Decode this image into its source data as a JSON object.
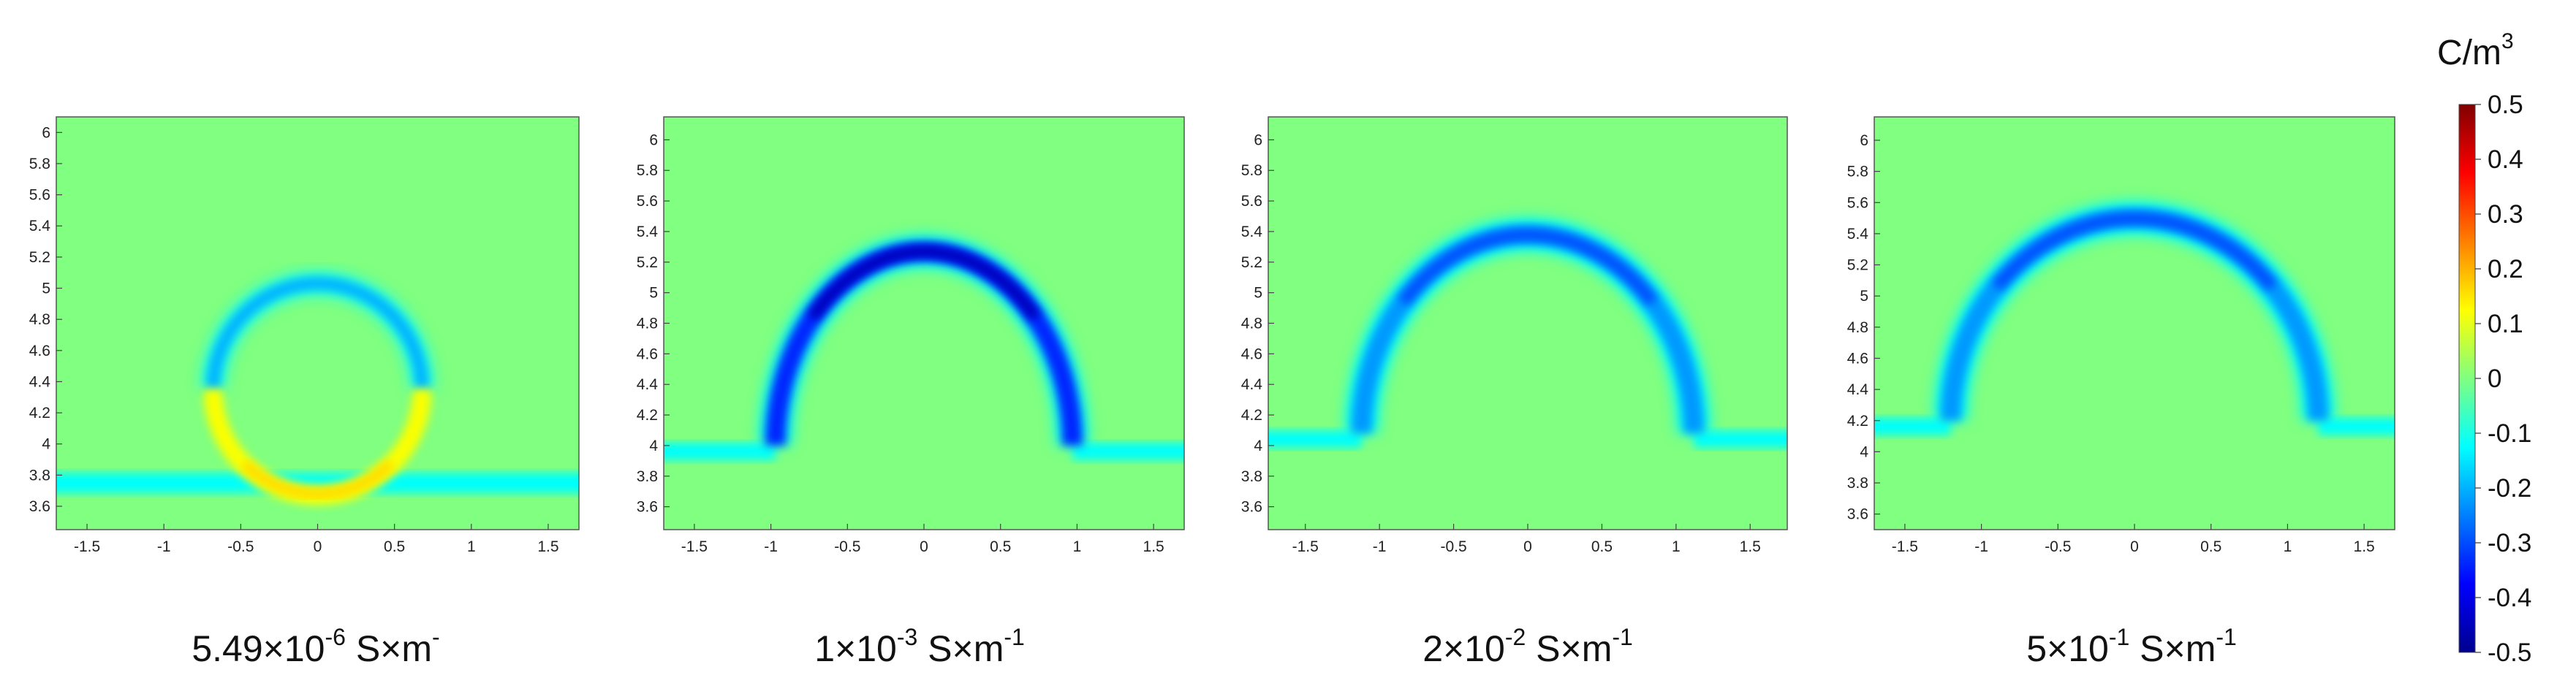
{
  "chart_data": {
    "type": "heatmap",
    "colorbar": {
      "unit": "C/m",
      "unit_exponent": "3",
      "range": [
        -0.5,
        0.5
      ],
      "ticks": [
        "0.5",
        "0.4",
        "0.3",
        "0.2",
        "0.1",
        "0",
        "-0.1",
        "-0.2",
        "-0.3",
        "-0.4",
        "-0.5"
      ],
      "colormap": "jet"
    },
    "panels": [
      {
        "caption": {
          "base": "5.49×10",
          "exp": "-6",
          "unit": " S×m",
          "unit_exp": "-"
        },
        "xlim": [
          -1.7,
          1.7
        ],
        "ylim": [
          3.45,
          6.1
        ],
        "xticks": [
          "-1.5",
          "-1",
          "-0.5",
          "0",
          "0.5",
          "1",
          "1.5"
        ],
        "yticks": [
          "6",
          "5.8",
          "5.6",
          "5.4",
          "5.2",
          "5",
          "4.8",
          "4.6",
          "4.4",
          "4.2",
          "4",
          "3.8",
          "3.6"
        ],
        "feature": {
          "shape": "full-ring",
          "center_x": 0,
          "center_y": 4.35,
          "radius": 0.68,
          "band_y": 3.75,
          "top_value": -0.2,
          "bottom_value": 0.12
        }
      },
      {
        "caption": {
          "base": "1×10",
          "exp": "-3",
          "unit": " S×m",
          "unit_exp": "-1"
        },
        "xlim": [
          -1.7,
          1.7
        ],
        "ylim": [
          3.45,
          6.15
        ],
        "xticks": [
          "-1.5",
          "-1",
          "-0.5",
          "0",
          "0.5",
          "1",
          "1.5"
        ],
        "yticks": [
          "6",
          "5.8",
          "5.6",
          "5.4",
          "5.2",
          "5",
          "4.8",
          "4.6",
          "4.4",
          "4.2",
          "4",
          "3.8",
          "3.6"
        ],
        "feature": {
          "shape": "arch",
          "center_x": 0,
          "base_y": 4.0,
          "radius_x": 0.97,
          "top_y": 5.27,
          "peak_value": -0.45
        }
      },
      {
        "caption": {
          "base": "2×10",
          "exp": "-2",
          "unit": " S×m",
          "unit_exp": "-1"
        },
        "xlim": [
          -1.75,
          1.75
        ],
        "ylim": [
          3.45,
          6.15
        ],
        "xticks": [
          "-1.5",
          "-1",
          "-0.5",
          "0",
          "0.5",
          "1",
          "1.5"
        ],
        "yticks": [
          "6",
          "5.8",
          "5.6",
          "5.4",
          "5.2",
          "5",
          "4.8",
          "4.6",
          "4.4",
          "4.2",
          "4",
          "3.8",
          "3.6"
        ],
        "feature": {
          "shape": "arch",
          "center_x": 0,
          "base_y": 4.08,
          "radius_x": 1.12,
          "top_y": 5.38,
          "peak_value": -0.3
        }
      },
      {
        "caption": {
          "base": "5×10",
          "exp": "-1",
          "unit": " S×m",
          "unit_exp": "-1"
        },
        "xlim": [
          -1.7,
          1.7
        ],
        "ylim": [
          3.5,
          6.15
        ],
        "xticks": [
          "-1.5",
          "-1",
          "-0.5",
          "0",
          "0.5",
          "1",
          "1.5"
        ],
        "yticks": [
          "6",
          "5.8",
          "5.6",
          "5.4",
          "5.2",
          "5",
          "4.8",
          "4.6",
          "4.4",
          "4.2",
          "4",
          "3.8",
          "3.6"
        ],
        "feature": {
          "shape": "arch",
          "center_x": 0,
          "base_y": 4.2,
          "radius_x": 1.2,
          "top_y": 5.5,
          "peak_value": -0.3
        }
      }
    ]
  }
}
